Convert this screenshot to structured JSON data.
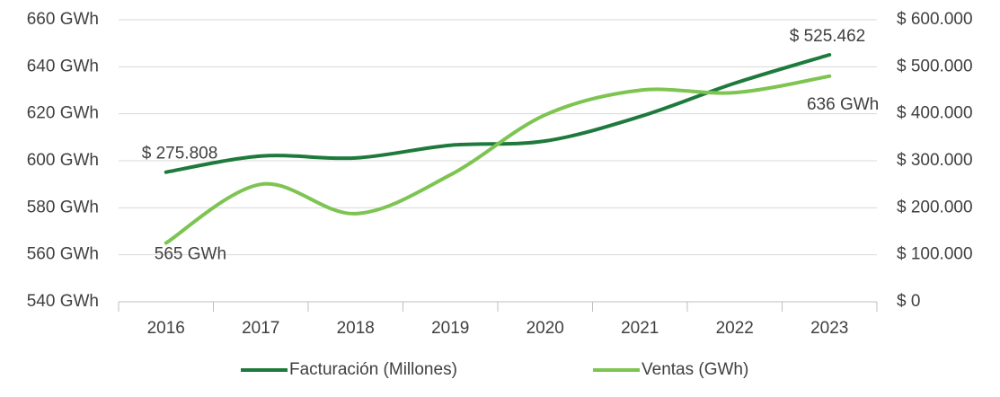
{
  "chart_data": {
    "type": "line",
    "categories": [
      "2016",
      "2017",
      "2018",
      "2019",
      "2020",
      "2021",
      "2022",
      "2023"
    ],
    "series": [
      {
        "name": "Facturación (Millones)",
        "color": "#1e7a3c",
        "axis": "y2",
        "values": [
          275808,
          310000,
          306000,
          333000,
          342000,
          394000,
          465000,
          525462
        ],
        "value_labels": [
          "$ 275.808",
          null,
          null,
          null,
          null,
          null,
          null,
          "$ 525.462"
        ]
      },
      {
        "name": "Ventas (GWh)",
        "color": "#7dc451",
        "axis": "y",
        "values": [
          565,
          590,
          577.5,
          594,
          619.5,
          630,
          629,
          636
        ],
        "value_labels": [
          "565 GWh",
          null,
          null,
          null,
          null,
          null,
          null,
          "636 GWh"
        ]
      }
    ],
    "ylim": [
      540,
      660
    ],
    "yticks": [
      {
        "value": 540,
        "label": "540 GWh"
      },
      {
        "value": 560,
        "label": "560 GWh"
      },
      {
        "value": 580,
        "label": "580 GWh"
      },
      {
        "value": 600,
        "label": "600 GWh"
      },
      {
        "value": 620,
        "label": "620 GWh"
      },
      {
        "value": 640,
        "label": "640 GWh"
      },
      {
        "value": 660,
        "label": "660 GWh"
      }
    ],
    "y2lim": [
      0,
      600000
    ],
    "y2ticks": [
      {
        "value": 0,
        "label": "$ 0"
      },
      {
        "value": 100000,
        "label": "$ 100.000"
      },
      {
        "value": 200000,
        "label": "$ 200.000"
      },
      {
        "value": 300000,
        "label": "$ 300.000"
      },
      {
        "value": 400000,
        "label": "$ 400.000"
      },
      {
        "value": 500000,
        "label": "$ 500.000"
      },
      {
        "value": 600000,
        "label": "$ 600.000"
      }
    ],
    "grid": true,
    "legend": "bottom"
  }
}
